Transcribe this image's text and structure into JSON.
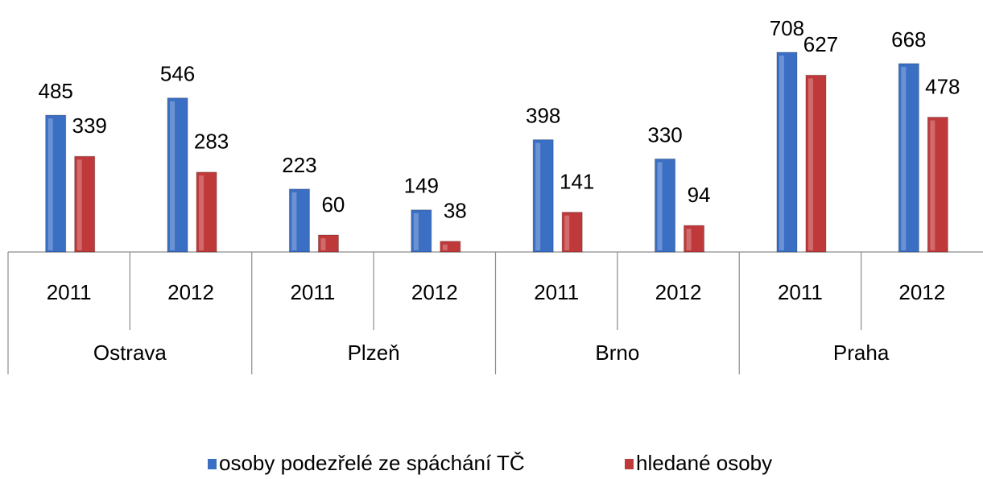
{
  "chart_data": {
    "type": "bar",
    "categories": [
      "2011",
      "2012",
      "2011",
      "2012",
      "2011",
      "2012",
      "2011",
      "2012"
    ],
    "groups": [
      "Ostrava",
      "Plzeň",
      "Brno",
      "Praha"
    ],
    "series": [
      {
        "name": "osoby podezřelé ze spáchání TČ",
        "color": "#3a6fc4",
        "values": [
          485,
          546,
          223,
          149,
          398,
          330,
          708,
          668
        ]
      },
      {
        "name": "hledané osoby",
        "color": "#c0393a",
        "values": [
          339,
          283,
          60,
          38,
          141,
          94,
          627,
          478
        ]
      }
    ],
    "legend": "bottom"
  }
}
